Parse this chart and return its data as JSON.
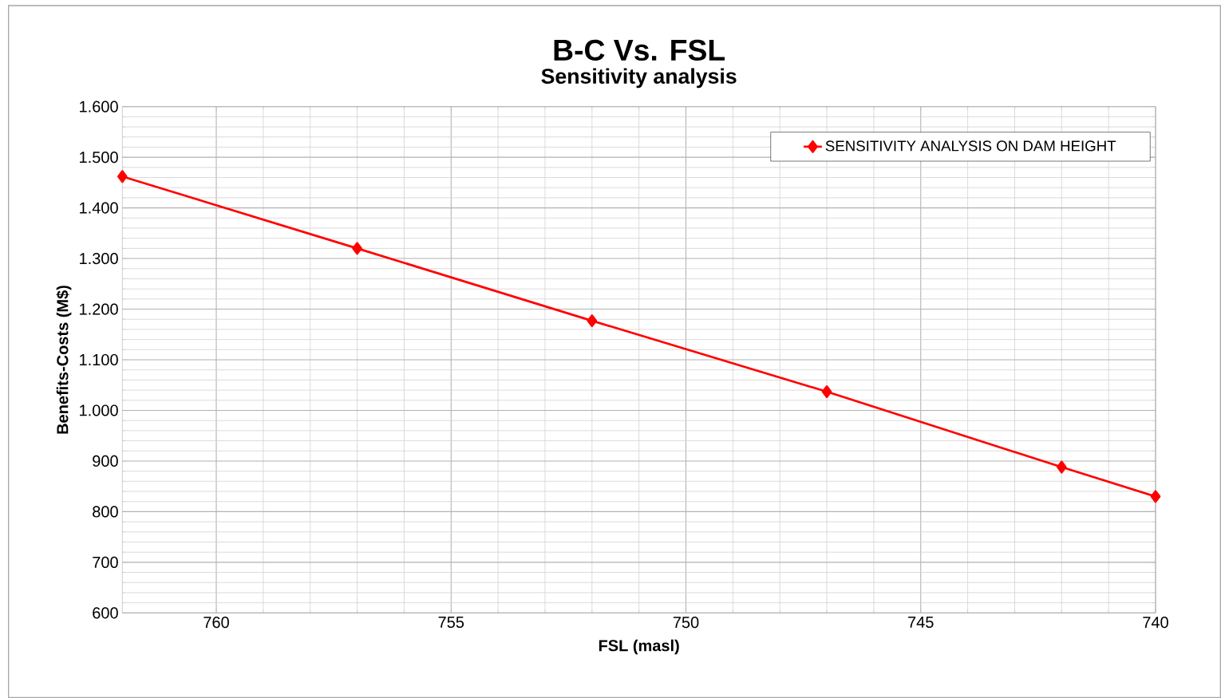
{
  "chart_data": {
    "type": "line",
    "title": "B-C Vs. FSL",
    "subtitle": "Sensitivity analysis",
    "xlabel": "FSL (masl)",
    "ylabel": "Benefits-Costs (M$)",
    "x": [
      762,
      757,
      752,
      747,
      742,
      740
    ],
    "series": [
      {
        "name": "SENSITIVITY ANALYSIS ON DAM HEIGHT",
        "color": "#ff0000",
        "values": [
          1462,
          1320,
          1177,
          1037,
          888,
          830
        ]
      }
    ],
    "xlim": [
      762,
      740
    ],
    "xticks": [
      760,
      755,
      750,
      745,
      740
    ],
    "ylim": [
      600,
      1600
    ],
    "yticks": [
      {
        "value": 600,
        "label": "600"
      },
      {
        "value": 700,
        "label": "700"
      },
      {
        "value": 800,
        "label": "800"
      },
      {
        "value": 900,
        "label": "900"
      },
      {
        "value": 1000,
        "label": "1.000"
      },
      {
        "value": 1100,
        "label": "1.100"
      },
      {
        "value": 1200,
        "label": "1.200"
      },
      {
        "value": 1300,
        "label": "1.300"
      },
      {
        "value": 1400,
        "label": "1.400"
      },
      {
        "value": 1500,
        "label": "1.500"
      },
      {
        "value": 1600,
        "label": "1.600"
      }
    ],
    "grid": true,
    "legend": "top right",
    "marker": "diamond",
    "line_style": "solid"
  }
}
